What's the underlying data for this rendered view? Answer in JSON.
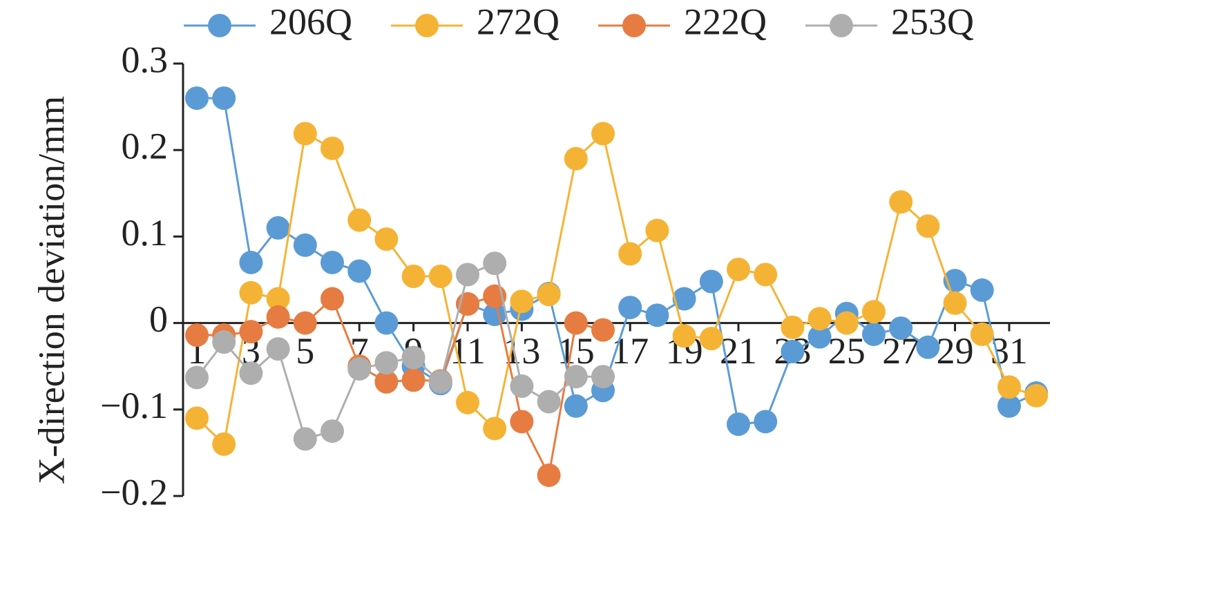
{
  "chart_data": {
    "type": "line",
    "y_label": "X-direction deviation/mm",
    "categories": [
      "1",
      null,
      "3",
      null,
      "5",
      null,
      "7",
      null,
      "9",
      null,
      "11",
      null,
      "13",
      null,
      "15",
      null,
      "17",
      null,
      "19",
      null,
      "21",
      null,
      "23",
      null,
      "25",
      null,
      "27",
      null,
      "29",
      null,
      "31",
      null
    ],
    "series": [
      {
        "name": "206Q",
        "color": "#5b9bd5",
        "values": [
          0.26,
          0.26,
          0.07,
          0.11,
          0.09,
          0.07,
          0.06,
          0,
          -0.05,
          -0.07,
          0.022,
          0.01,
          0.016,
          0.034,
          -0.096,
          -0.078,
          0.018,
          0.009,
          0.028,
          0.048,
          -0.117,
          -0.114,
          -0.033,
          -0.016,
          0.011,
          -0.013,
          -0.006,
          -0.028,
          0.049,
          0.038,
          -0.096,
          -0.081
        ]
      },
      {
        "name": "272Q",
        "color": "#f5b335",
        "values": [
          -0.11,
          -0.14,
          0.035,
          0.028,
          0.219,
          0.202,
          0.119,
          0.097,
          0.054,
          0.054,
          -0.092,
          -0.122,
          0.025,
          0.033,
          0.19,
          0.219,
          0.08,
          0.107,
          -0.015,
          -0.018,
          0.062,
          0.056,
          -0.005,
          0.005,
          0,
          0.013,
          0.14,
          0.112,
          0.023,
          -0.013,
          -0.074,
          -0.084
        ]
      },
      {
        "name": "222Q",
        "color": "#e67c41",
        "values": [
          -0.014,
          -0.014,
          -0.01,
          0.007,
          0,
          0.028,
          -0.05,
          -0.068,
          -0.066,
          -0.067,
          0.022,
          0.031,
          -0.114,
          -0.176,
          0,
          -0.008,
          null,
          null,
          null,
          null,
          null,
          null,
          null,
          null,
          null,
          null,
          null,
          null,
          null,
          null,
          null,
          null
        ]
      },
      {
        "name": "253Q",
        "color": "#aeaeae",
        "values": [
          -0.063,
          -0.022,
          -0.058,
          -0.03,
          -0.134,
          -0.125,
          -0.053,
          -0.046,
          -0.04,
          -0.068,
          0.056,
          0.069,
          -0.073,
          -0.091,
          -0.062,
          -0.062,
          null,
          null,
          null,
          null,
          null,
          null,
          null,
          null,
          null,
          null,
          null,
          null,
          null,
          null,
          null,
          null
        ]
      }
    ],
    "ylim": [
      -0.2,
      0.3
    ],
    "yticks": [
      {
        "value": -0.2,
        "label": "−0.2"
      },
      {
        "value": -0.1,
        "label": "−0.1"
      },
      0,
      0.1,
      0.2,
      0.3
    ],
    "legend": "top"
  }
}
